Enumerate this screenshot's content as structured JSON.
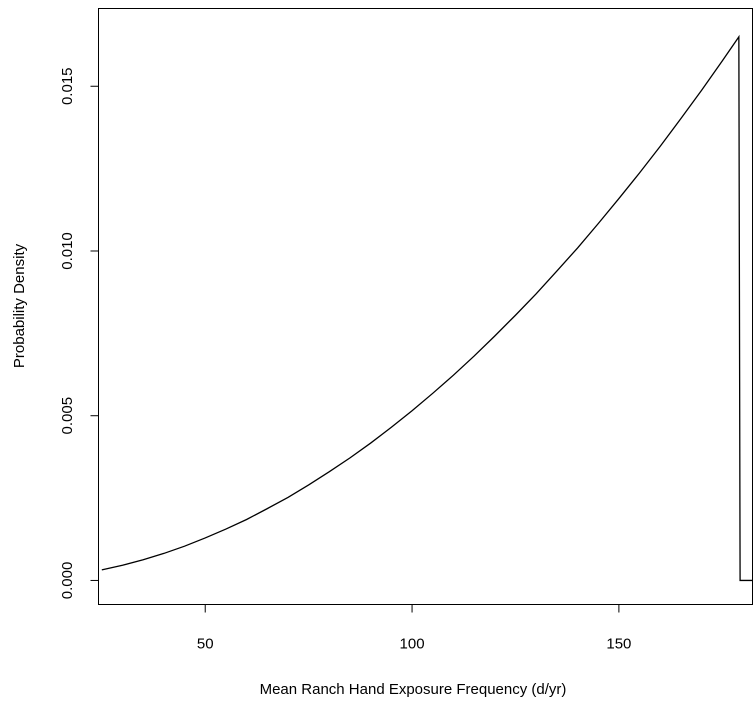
{
  "chart_data": {
    "type": "line",
    "x_label": "Mean Ranch Hand Exposure Frequency (d/yr)",
    "y_label": "Probability Density",
    "x": [
      25,
      30,
      35,
      40,
      45,
      50,
      55,
      60,
      65,
      70,
      75,
      80,
      85,
      90,
      95,
      100,
      105,
      110,
      115,
      120,
      125,
      130,
      135,
      140,
      145,
      150,
      155,
      160,
      165,
      170,
      175,
      179,
      179.3,
      182.3
    ],
    "series": [
      {
        "color": "#000000",
        "values": [
          0.00032,
          0.00046,
          0.00063,
          0.00082,
          0.00104,
          0.00129,
          0.00156,
          0.00185,
          0.00218,
          0.00252,
          0.0029,
          0.0033,
          0.00372,
          0.00417,
          0.00465,
          0.00515,
          0.00568,
          0.00623,
          0.00681,
          0.00742,
          0.00805,
          0.0087,
          0.00939,
          0.01009,
          0.01083,
          0.01159,
          0.01237,
          0.01318,
          0.01402,
          0.01488,
          0.01577,
          0.0165,
          0,
          0
        ]
      }
    ],
    "xlim": [
      24.2,
      182.3
    ],
    "ylim": [
      -0.00073,
      0.01736
    ],
    "xticks": [
      50,
      100,
      150
    ],
    "yticks": [
      {
        "value": 0,
        "label": "0.000"
      },
      {
        "value": 0.005,
        "label": "0.005"
      },
      {
        "value": 0.01,
        "label": "0.010"
      },
      {
        "value": 0.015,
        "label": "0.015"
      }
    ]
  }
}
